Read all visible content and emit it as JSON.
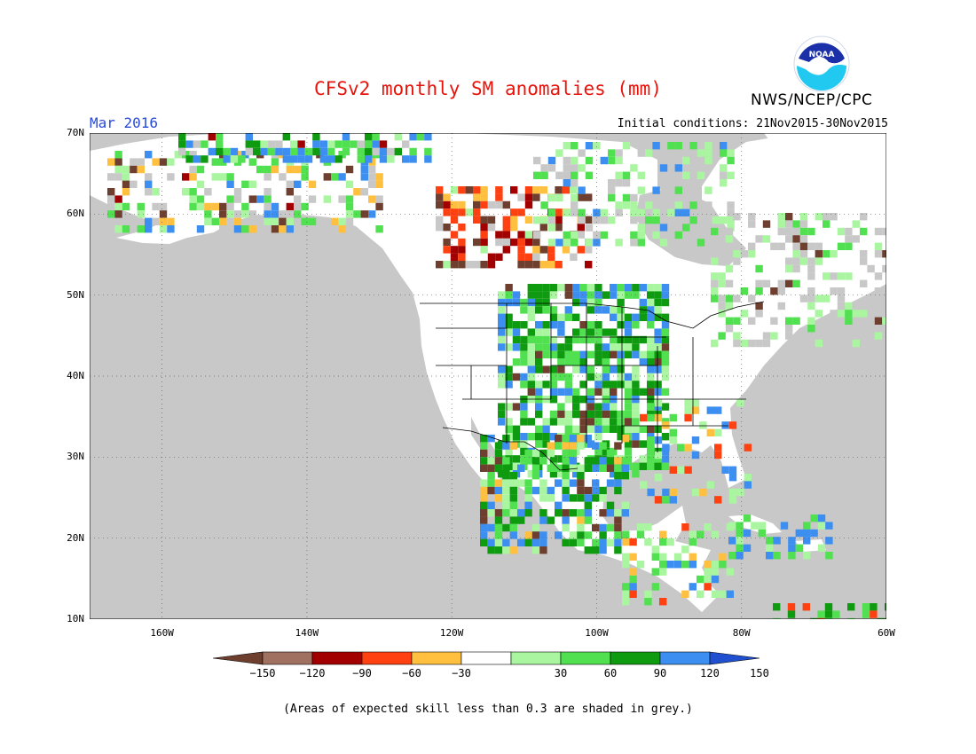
{
  "header": {
    "title": "CFSv2 monthly SM anomalies (mm)",
    "agency": "NWS/NCEP/CPC",
    "month": "Mar 2016",
    "initial_conditions": "Initial conditions: 21Nov2015-30Nov2015",
    "logo_text": "NOAA"
  },
  "map": {
    "lat_labels": [
      "70N",
      "60N",
      "50N",
      "40N",
      "30N",
      "20N",
      "10N"
    ],
    "lon_labels": [
      "160W",
      "140W",
      "120W",
      "100W",
      "80W",
      "60W"
    ],
    "lat_range": [
      10,
      70
    ],
    "lon_range": [
      -170,
      -60
    ],
    "colors": {
      "ocean": "#c8c8c8",
      "grey_skill": "#c8c8c8",
      "land": "#ffffff",
      "boundary": "#000000"
    }
  },
  "legend": {
    "labels": [
      "-150",
      "-120",
      "-90",
      "-60",
      "-30",
      "30",
      "60",
      "90",
      "120",
      "150"
    ],
    "colors": [
      "#6e3f2e",
      "#a07060",
      "#a20000",
      "#ff4010",
      "#ffc040",
      "#ffffff",
      "#aaf5a0",
      "#50e050",
      "#0f9b0f",
      "#3c8ff0",
      "#2050d0"
    ]
  },
  "footnote": "(Areas of expected skill less than 0.3 are shaded in grey.)"
}
